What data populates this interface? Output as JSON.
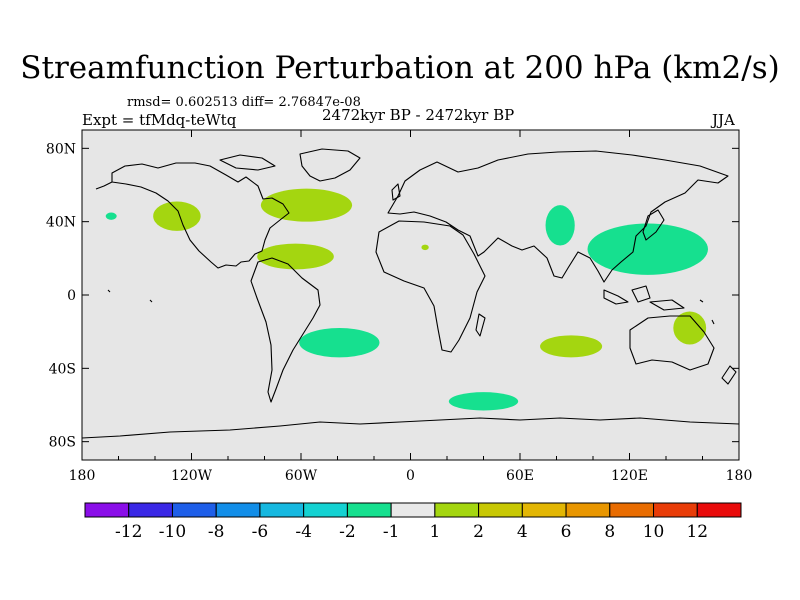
{
  "title": "Streamfunction Perturbation at 200 hPa (km2/s)",
  "rmsd_line": "rmsd= 0.602513 diff= 2.76847e-08",
  "experiment": "Expt = tfMdq-teWtq",
  "period": "2472kyr BP - 2472kyr BP",
  "season": "JJA",
  "map": {
    "land_fill": "#e6e6e6",
    "coast_color": "#000000",
    "lat_ticks": [
      {
        "value": 80,
        "label": "80N"
      },
      {
        "value": 40,
        "label": "40N"
      },
      {
        "value": 0,
        "label": "0"
      },
      {
        "value": -40,
        "label": "40S"
      },
      {
        "value": -80,
        "label": "80S"
      }
    ],
    "lon_ticks": [
      {
        "value": -180,
        "label": "180"
      },
      {
        "value": -120,
        "label": "120W"
      },
      {
        "value": -60,
        "label": "60W"
      },
      {
        "value": 0,
        "label": "0"
      },
      {
        "value": 60,
        "label": "60E"
      },
      {
        "value": 120,
        "label": "120E"
      },
      {
        "value": 180,
        "label": "180"
      }
    ],
    "anomalies": [
      {
        "name": "north-pacific-east-positive",
        "lon": -128,
        "lat": 43,
        "rlon": 13,
        "rlat": 8,
        "level": "1-2",
        "color": "#a4d610"
      },
      {
        "name": "north-pacific-west-small-negative",
        "lon": -164,
        "lat": 43,
        "rlon": 3,
        "rlat": 2,
        "level": "-2--1",
        "color": "#16e08f"
      },
      {
        "name": "north-atlantic-positive",
        "lon": -57,
        "lat": 49,
        "rlon": 25,
        "rlat": 9,
        "level": "1-2",
        "color": "#a4d610"
      },
      {
        "name": "caribbean-positive",
        "lon": -63,
        "lat": 21,
        "rlon": 21,
        "rlat": 7,
        "level": "1-2",
        "color": "#a4d610"
      },
      {
        "name": "sahara-small-positive",
        "lon": 8,
        "lat": 26,
        "rlon": 2,
        "rlat": 1.5,
        "level": "1-2",
        "color": "#a4d610"
      },
      {
        "name": "central-asia-negative",
        "lon": 82,
        "lat": 38,
        "rlon": 8,
        "rlat": 11,
        "level": "-2--1",
        "color": "#16e08f"
      },
      {
        "name": "east-asia-negative",
        "lon": 130,
        "lat": 25,
        "rlon": 33,
        "rlat": 14,
        "level": "-2--1",
        "color": "#16e08f"
      },
      {
        "name": "south-atlantic-negative",
        "lon": -39,
        "lat": -26,
        "rlon": 22,
        "rlat": 8,
        "level": "-2--1",
        "color": "#16e08f"
      },
      {
        "name": "indian-ocean-positive",
        "lon": 88,
        "lat": -28,
        "rlon": 17,
        "rlat": 6,
        "level": "1-2",
        "color": "#a4d610"
      },
      {
        "name": "australia-positive",
        "lon": 153,
        "lat": -18,
        "rlon": 9,
        "rlat": 9,
        "level": "1-2",
        "color": "#a4d610"
      },
      {
        "name": "southern-ocean-negative",
        "lon": 40,
        "lat": -58,
        "rlon": 19,
        "rlat": 5,
        "level": "-2--1",
        "color": "#16e08f"
      }
    ]
  },
  "colorbar": {
    "colors": [
      "#8a0ee8",
      "#3a28e6",
      "#1e5ee8",
      "#128ee8",
      "#16b8e0",
      "#14d2d2",
      "#16e08f",
      "#e8e8e8",
      "#a4d610",
      "#c8c804",
      "#e2b604",
      "#e89600",
      "#e86c00",
      "#e83c08",
      "#e80a0a"
    ],
    "labels": [
      "-12",
      "-10",
      "-8",
      "-6",
      "-4",
      "-2",
      "-1",
      "1",
      "2",
      "4",
      "6",
      "8",
      "10",
      "12"
    ]
  }
}
